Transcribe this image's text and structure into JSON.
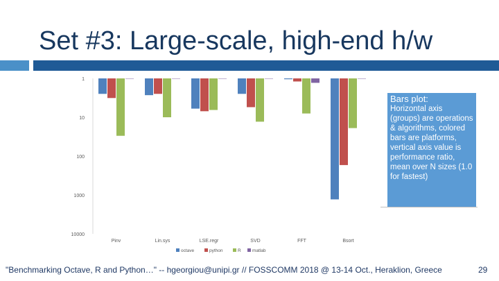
{
  "slide": {
    "title": "Set #3: Large-scale, high-end h/w",
    "footer": "\"Benchmarking Octave, R and Python…\" -- hgeorgiou@unipi.gr  //  FOSSCOMM 2018 @ 13-14 Oct., Heraklion, Greece",
    "page_number": "29",
    "colors": {
      "title": "#17375e",
      "accent_light": "#4a90c8",
      "accent_dark": "#1f5a96",
      "note_bg": "#5b9bd5"
    }
  },
  "note": {
    "title": "Bars plot:",
    "body": "Horizontal axis (groups) are operations & algorithms, colored bars are platforms, vertical axis value is performance ratio, mean over N sizes (1.0 for fastest)"
  },
  "chart_data": {
    "type": "bar",
    "categories": [
      "Pinv",
      "Lin.sys",
      "LSE.regr",
      "SVD",
      "FFT",
      "Bsort"
    ],
    "series": [
      {
        "name": "octave",
        "color": "#4f81bd",
        "values": [
          2.5,
          2.7,
          6,
          2.5,
          1.05,
          1300
        ]
      },
      {
        "name": "python",
        "color": "#c0504d",
        "values": [
          3.2,
          2.5,
          7,
          5.5,
          1.2,
          170
        ]
      },
      {
        "name": "R",
        "color": "#9bbb59",
        "values": [
          30,
          10,
          6.5,
          13,
          8,
          19
        ]
      },
      {
        "name": "matlab",
        "color": "#8064a2",
        "values": [
          1,
          1,
          1,
          1,
          1.3,
          1
        ]
      }
    ],
    "y_scale": "log",
    "y_inverted": true,
    "ylim": [
      1,
      10000
    ],
    "yticks": [
      "1",
      "10",
      "100",
      "1000",
      "10000"
    ],
    "legend_position": "bottom",
    "grid": false
  }
}
